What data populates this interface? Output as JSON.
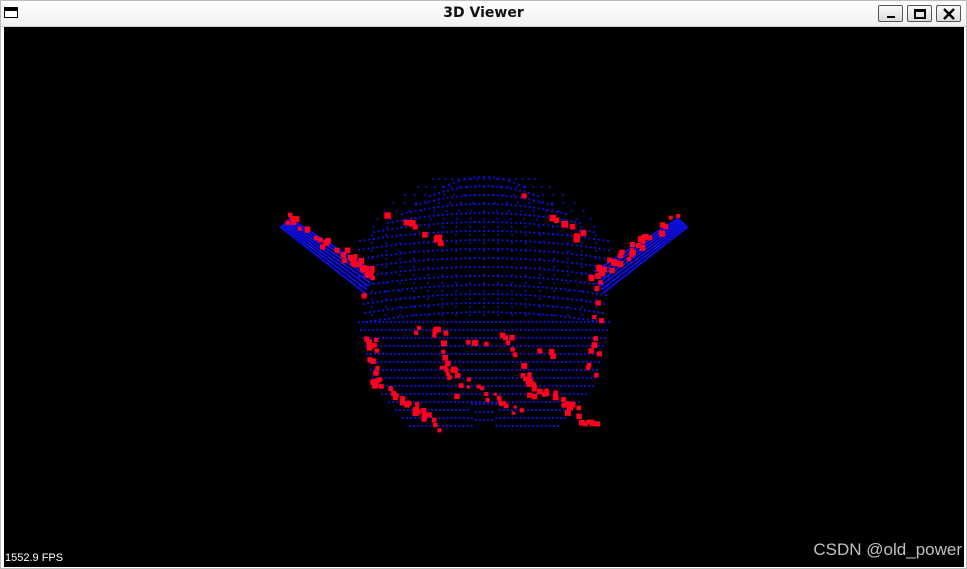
{
  "window": {
    "title": "3D Viewer",
    "icon": "window-app-icon",
    "controls": {
      "minimize": "minimize-icon",
      "maximize": "maximize-icon",
      "close": "close-icon"
    }
  },
  "viewer": {
    "background": "#000000",
    "point_colors": {
      "cloud": "#1010ff",
      "keypoints": "#ff0020"
    },
    "fps_label": "1552.9 FPS",
    "watermark": "CSDN @old_power"
  }
}
